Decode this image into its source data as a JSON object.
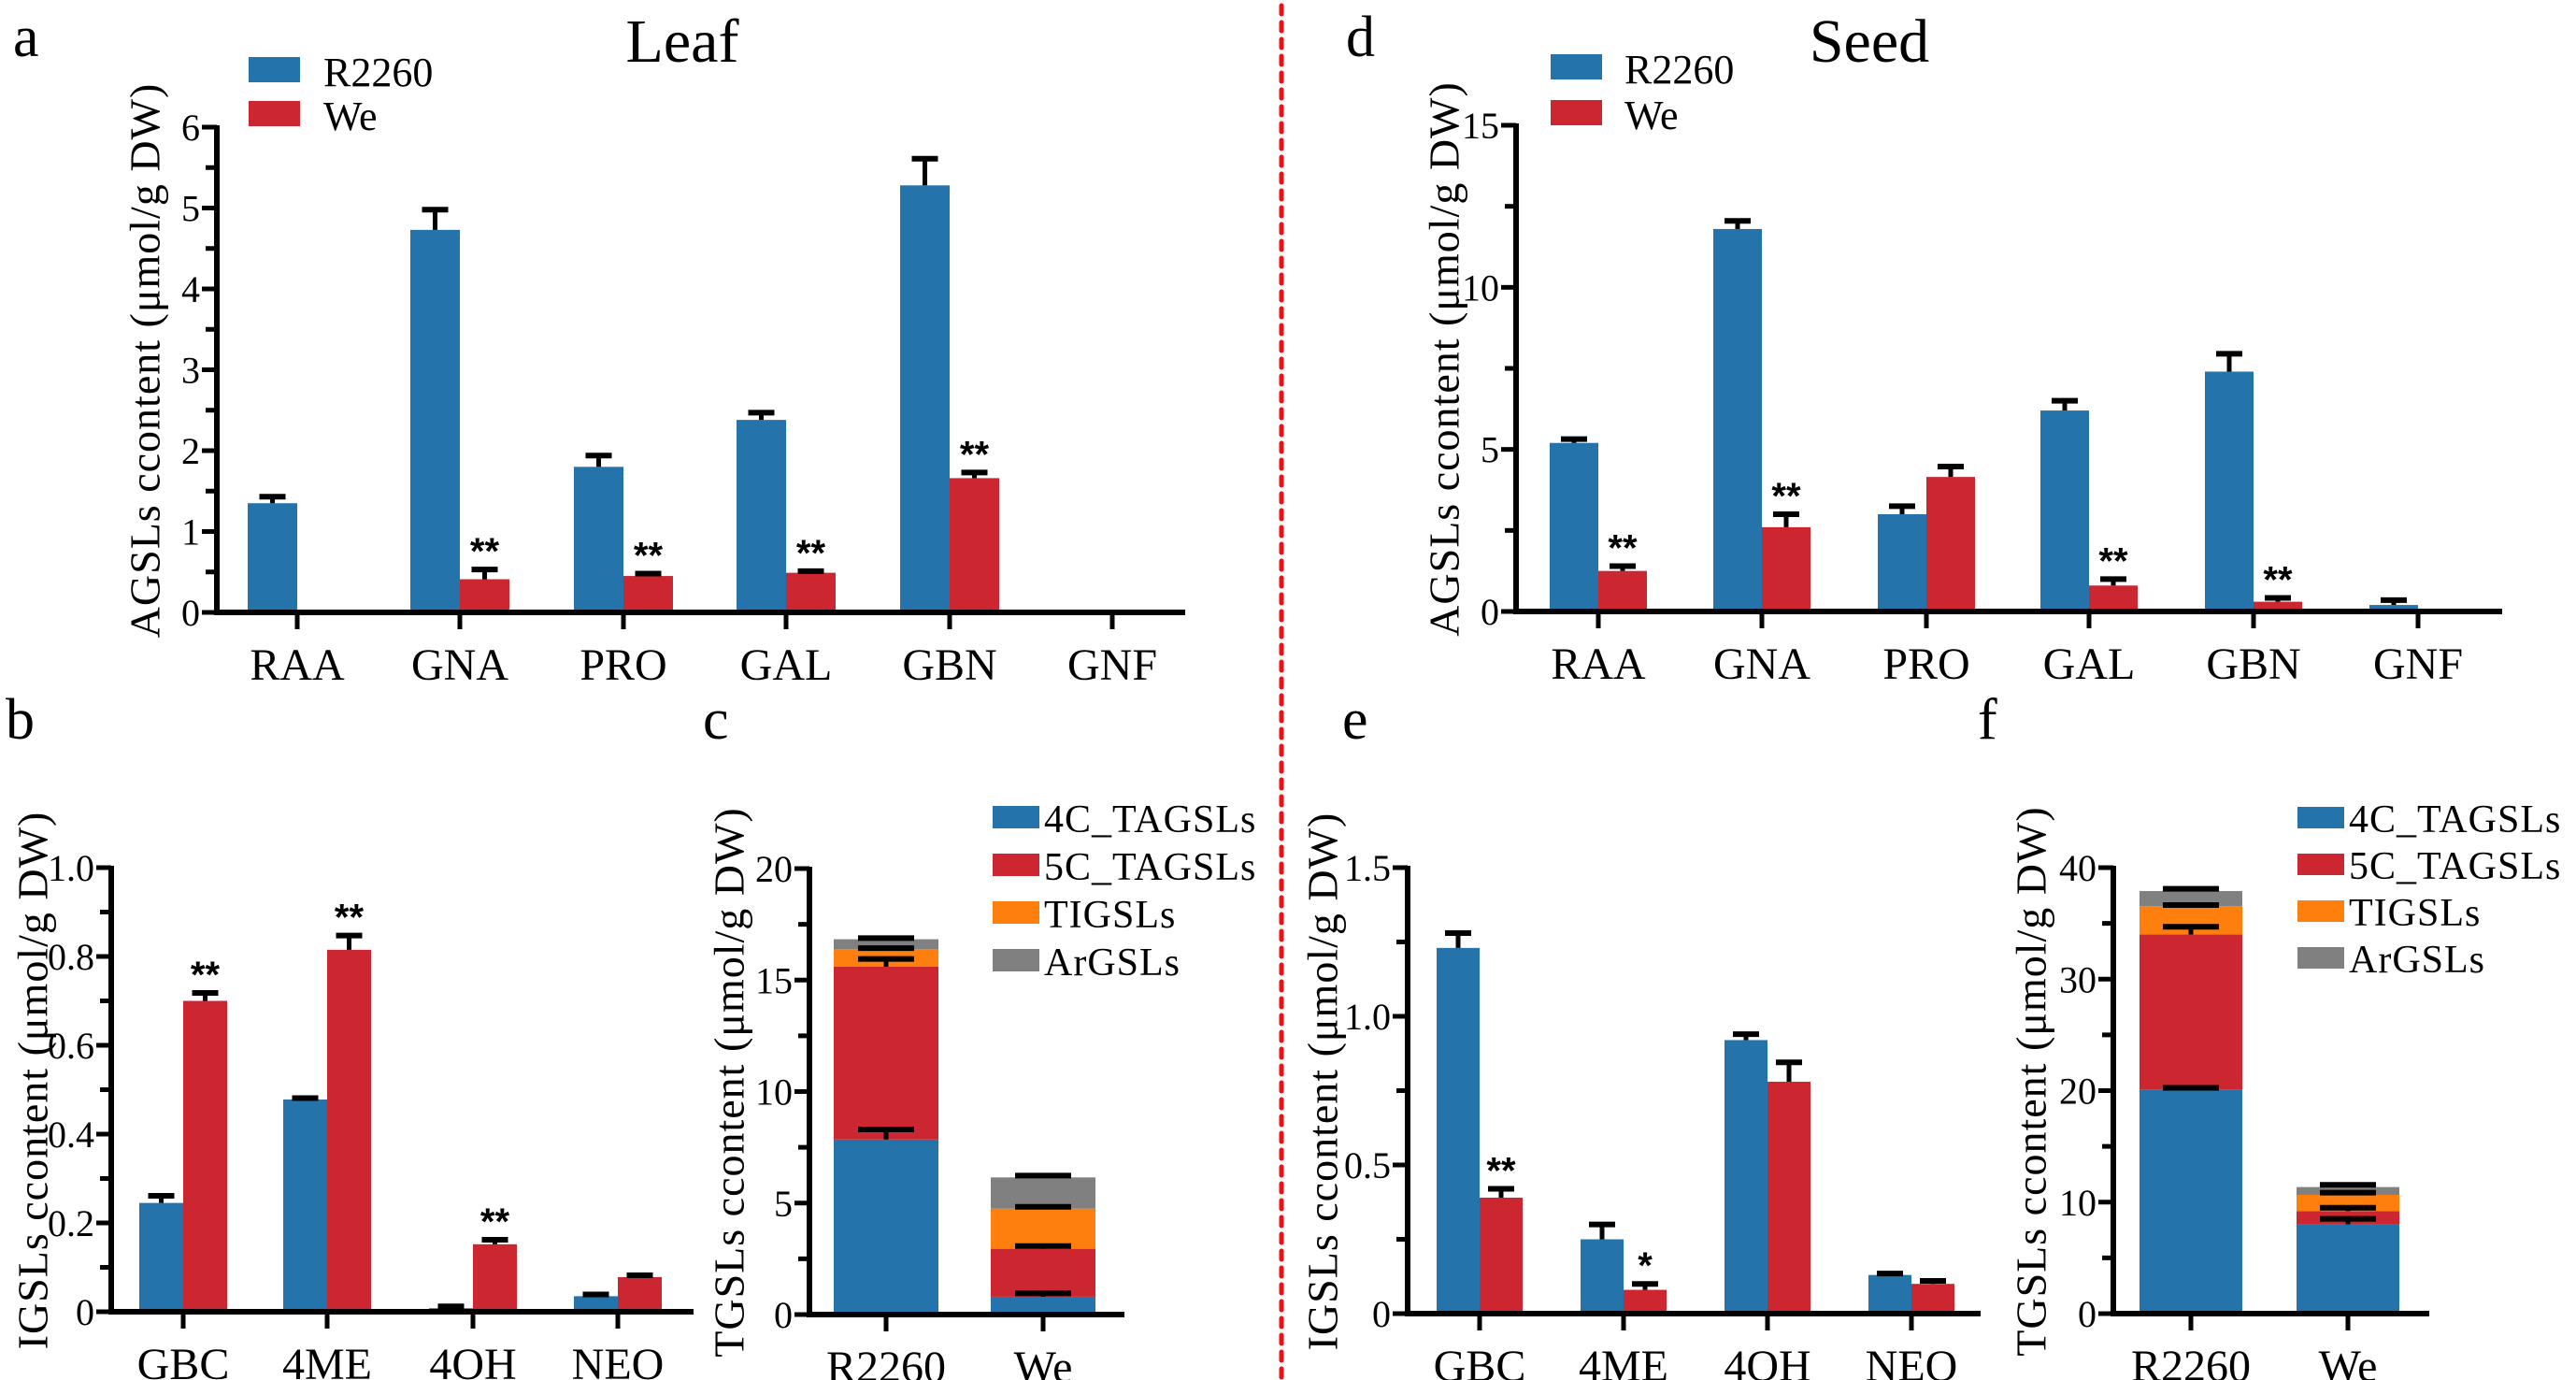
{
  "divider": {
    "color": "#ee1111",
    "style": "dotted"
  },
  "colors": {
    "R2260": "#2474ab",
    "We": "#cc2630",
    "4C_TAGSLs": "#2474ab",
    "5C_TAGSLs": "#cc2630",
    "TIGSLs": "#ff7f0e",
    "ArGSLs": "#808080"
  },
  "section_titles": {
    "left": "Leaf",
    "right": "Seed"
  },
  "chart_data": [
    {
      "id": "a",
      "panel_label": "a",
      "type": "bar",
      "title": "Leaf",
      "xlabel": "",
      "ylabel": "AGSLs ccontent (μmol/g DW)",
      "ylim": [
        0,
        6
      ],
      "yticks": [
        0,
        1,
        2,
        3,
        4,
        5,
        6
      ],
      "ytick_labels": [
        "0",
        "1",
        "2",
        "3",
        "4",
        "5",
        "6"
      ],
      "minor_ticks": true,
      "grid": false,
      "legend": {
        "position": "top-left",
        "entries": [
          "R2260",
          "We"
        ]
      },
      "categories": [
        "RAA",
        "GNA",
        "PRO",
        "GAL",
        "GBN",
        "GNF"
      ],
      "series": [
        {
          "name": "R2260",
          "values": [
            1.35,
            4.73,
            1.8,
            2.38,
            5.28,
            0
          ],
          "errors": [
            0.08,
            0.25,
            0.14,
            0.09,
            0.33,
            0
          ],
          "significance": [
            "",
            "",
            "",
            "",
            "",
            ""
          ]
        },
        {
          "name": "We",
          "values": [
            0,
            0.41,
            0.45,
            0.49,
            1.66,
            0
          ],
          "errors": [
            0,
            0.12,
            0.03,
            0.02,
            0.07,
            0
          ],
          "significance": [
            "",
            "**",
            "**",
            "**",
            "**",
            ""
          ]
        }
      ]
    },
    {
      "id": "b",
      "panel_label": "b",
      "type": "bar",
      "title": "",
      "xlabel": "",
      "ylabel": "IGSLs ccontent (μmol/g DW)",
      "ylim": [
        0,
        1.0
      ],
      "yticks": [
        0,
        0.2,
        0.4,
        0.6,
        0.8,
        1.0
      ],
      "ytick_labels": [
        "0",
        "0.2",
        "0.4",
        "0.6",
        "0.8",
        "1.0"
      ],
      "minor_ticks": true,
      "grid": false,
      "legend": null,
      "categories": [
        "GBC",
        "4ME",
        "4OH",
        "NEO"
      ],
      "series": [
        {
          "name": "R2260",
          "values": [
            0.245,
            0.478,
            0.008,
            0.035
          ],
          "errors": [
            0.016,
            0.003,
            0.004,
            0.004
          ],
          "significance": [
            "",
            "",
            "",
            ""
          ]
        },
        {
          "name": "We",
          "values": [
            0.7,
            0.815,
            0.152,
            0.078
          ],
          "errors": [
            0.018,
            0.032,
            0.01,
            0.004
          ],
          "significance": [
            "**",
            "**",
            "**",
            ""
          ]
        }
      ]
    },
    {
      "id": "c",
      "panel_label": "c",
      "type": "bar",
      "stacked": true,
      "title": "",
      "xlabel": "",
      "ylabel": "TGSLs ccontent (μmol/g DW)",
      "ylim": [
        0,
        20
      ],
      "yticks": [
        0,
        5,
        10,
        15,
        20
      ],
      "ytick_labels": [
        "0",
        "5",
        "10",
        "15",
        "20"
      ],
      "minor_ticks": true,
      "grid": false,
      "legend": {
        "position": "top-right",
        "entries": [
          "4C_TAGSLs",
          "5C_TAGSLs",
          "TIGSLs",
          "ArGSLs"
        ]
      },
      "categories": [
        "R2260",
        "We"
      ],
      "series": [
        {
          "name": "4C_TAGSLs",
          "values": [
            7.85,
            0.8
          ],
          "errors": [
            0.45,
            0.15
          ]
        },
        {
          "name": "5C_TAGSLs",
          "values": [
            7.75,
            2.15
          ],
          "errors": [
            0.35,
            0.12
          ]
        },
        {
          "name": "TIGSLs",
          "values": [
            0.78,
            1.8
          ],
          "errors": [
            0.05,
            0.08
          ]
        },
        {
          "name": "ArGSLs",
          "values": [
            0.45,
            1.4
          ],
          "errors": [
            0.05,
            0.08
          ]
        }
      ]
    },
    {
      "id": "d",
      "panel_label": "d",
      "type": "bar",
      "title": "Seed",
      "xlabel": "",
      "ylabel": "AGSLs ccontent (μmol/g DW)",
      "ylim": [
        0,
        15
      ],
      "yticks": [
        0,
        5,
        10,
        15
      ],
      "ytick_labels": [
        "0",
        "5",
        "10",
        "15"
      ],
      "minor_ticks": true,
      "grid": false,
      "legend": {
        "position": "top-left",
        "entries": [
          "R2260",
          "We"
        ]
      },
      "categories": [
        "RAA",
        "GNA",
        "PRO",
        "GAL",
        "GBN",
        "GNF"
      ],
      "series": [
        {
          "name": "R2260",
          "values": [
            5.2,
            11.8,
            3.0,
            6.2,
            7.4,
            0.2
          ],
          "errors": [
            0.12,
            0.25,
            0.25,
            0.3,
            0.55,
            0.15
          ],
          "significance": [
            "",
            "",
            "",
            "",
            "",
            ""
          ]
        },
        {
          "name": "We",
          "values": [
            1.25,
            2.6,
            4.15,
            0.8,
            0.3,
            0
          ],
          "errors": [
            0.15,
            0.4,
            0.32,
            0.2,
            0.12,
            0
          ],
          "significance": [
            "**",
            "**",
            "",
            "**",
            "**",
            ""
          ]
        }
      ]
    },
    {
      "id": "e",
      "panel_label": "e",
      "type": "bar",
      "title": "",
      "xlabel": "",
      "ylabel": "IGSLs ccontent (μmol/g DW)",
      "ylim": [
        0,
        1.5
      ],
      "yticks": [
        0,
        0.5,
        1.0,
        1.5
      ],
      "ytick_labels": [
        "0",
        "0.5",
        "1.0",
        "1.5"
      ],
      "minor_ticks": true,
      "grid": false,
      "legend": null,
      "categories": [
        "GBC",
        "4ME",
        "4OH",
        "NEO"
      ],
      "series": [
        {
          "name": "R2260",
          "values": [
            1.23,
            0.25,
            0.92,
            0.13
          ],
          "errors": [
            0.05,
            0.05,
            0.02,
            0.005
          ],
          "significance": [
            "",
            "",
            "",
            ""
          ]
        },
        {
          "name": "We",
          "values": [
            0.39,
            0.08,
            0.78,
            0.1
          ],
          "errors": [
            0.03,
            0.02,
            0.065,
            0.01
          ],
          "significance": [
            "**",
            "*",
            "",
            ""
          ]
        }
      ]
    },
    {
      "id": "f",
      "panel_label": "f",
      "type": "bar",
      "stacked": true,
      "title": "",
      "xlabel": "",
      "ylabel": "TGSLs ccontent (μmol/g DW)",
      "ylim": [
        0,
        40
      ],
      "yticks": [
        0,
        10,
        20,
        30,
        40
      ],
      "ytick_labels": [
        "0",
        "10",
        "20",
        "30",
        "40"
      ],
      "minor_ticks": true,
      "grid": false,
      "legend": {
        "position": "top-right",
        "entries": [
          "4C_TAGSLs",
          "5C_TAGSLs",
          "TIGSLs",
          "ArGSLs"
        ]
      },
      "categories": [
        "R2260",
        "We"
      ],
      "series": [
        {
          "name": "4C_TAGSLs",
          "values": [
            20.1,
            8.0
          ],
          "errors": [
            0.15,
            0.5
          ]
        },
        {
          "name": "5C_TAGSLs",
          "values": [
            13.9,
            1.2
          ],
          "errors": [
            0.7,
            0.3
          ]
        },
        {
          "name": "TIGSLs",
          "values": [
            2.55,
            1.45
          ],
          "errors": [
            0.1,
            0.2
          ]
        },
        {
          "name": "ArGSLs",
          "values": [
            1.35,
            0.7
          ],
          "errors": [
            0.2,
            0.2
          ]
        }
      ]
    }
  ]
}
